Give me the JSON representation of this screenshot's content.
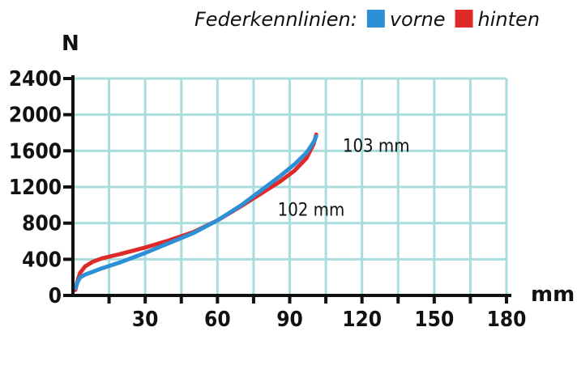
{
  "chart_data": {
    "type": "line",
    "legend": {
      "title": "Federkennlinien:",
      "placement": "top-right"
    },
    "xlabel": "mm",
    "ylabel": "N",
    "xlim": [
      0,
      180
    ],
    "ylim": [
      0,
      2400
    ],
    "xticks": [
      30,
      60,
      90,
      120,
      150,
      180
    ],
    "yticks": [
      0,
      400,
      800,
      1200,
      1600,
      2000,
      2400
    ],
    "grid": true,
    "series": [
      {
        "name": "vorne",
        "color": "#2d8fd5",
        "x": [
          1,
          2,
          3,
          5,
          8,
          12,
          20,
          30,
          40,
          50,
          60,
          70,
          80,
          86,
          92,
          97,
          100,
          101
        ],
        "y": [
          80,
          150,
          200,
          230,
          260,
          300,
          370,
          470,
          580,
          690,
          830,
          1000,
          1200,
          1320,
          1450,
          1580,
          1700,
          1760
        ]
      },
      {
        "name": "hinten",
        "color": "#e02a2a",
        "x": [
          1,
          2,
          3,
          5,
          8,
          12,
          20,
          30,
          40,
          50,
          60,
          70,
          80,
          86,
          92,
          97,
          100,
          101
        ],
        "y": [
          60,
          170,
          250,
          320,
          370,
          410,
          460,
          530,
          610,
          700,
          830,
          990,
          1160,
          1260,
          1380,
          1520,
          1680,
          1780
        ]
      }
    ],
    "annotations": [
      {
        "text": "103  mm",
        "x": 112,
        "y": 1590
      },
      {
        "text": "102  mm",
        "x": 85,
        "y": 880
      }
    ]
  }
}
